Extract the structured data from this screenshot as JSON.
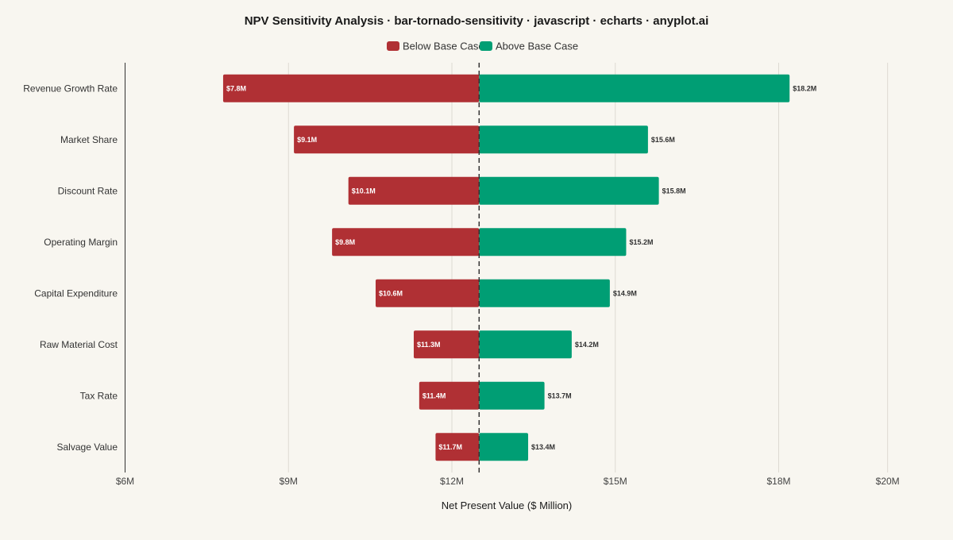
{
  "chart_data": {
    "type": "bar",
    "orientation": "horizontal",
    "subtype": "tornado",
    "title": "NPV Sensitivity Analysis · bar-tornado-sensitivity · javascript · echarts · anyplot.ai",
    "xlabel": "Net Present Value ($ Million)",
    "ylabel": "",
    "base_value": 12.5,
    "xlim": [
      6,
      20
    ],
    "x_ticks": [
      6,
      9,
      12,
      15,
      18,
      20
    ],
    "x_tick_labels": [
      "$6M",
      "$9M",
      "$12M",
      "$15M",
      "$18M",
      "$20M"
    ],
    "grid": true,
    "legend_position": "top-center",
    "categories": [
      "Revenue Growth Rate",
      "Market Share",
      "Discount Rate",
      "Operating Margin",
      "Capital Expenditure",
      "Raw Material Cost",
      "Tax Rate",
      "Salvage Value"
    ],
    "series": [
      {
        "name": "Below Base Case",
        "color": "#b03034",
        "values": [
          7.8,
          9.1,
          10.1,
          9.8,
          10.6,
          11.3,
          11.4,
          11.7
        ],
        "labels": [
          "$7.8M",
          "$9.1M",
          "$10.1M",
          "$9.8M",
          "$10.6M",
          "$11.3M",
          "$11.4M",
          "$11.7M"
        ]
      },
      {
        "name": "Above Base Case",
        "color": "#009e74",
        "values": [
          18.2,
          15.6,
          15.8,
          15.2,
          14.9,
          14.2,
          13.7,
          13.4
        ],
        "labels": [
          "$18.2M",
          "$15.6M",
          "$15.8M",
          "$15.2M",
          "$14.9M",
          "$14.2M",
          "$13.7M",
          "$13.4M"
        ]
      }
    ]
  }
}
